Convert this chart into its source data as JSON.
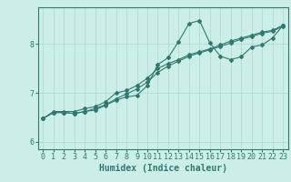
{
  "xlabel": "Humidex (Indice chaleur)",
  "background_color": "#cceee8",
  "line_color": "#2e7b6e",
  "grid_color": "#aad8d0",
  "xlim": [
    -0.5,
    23.5
  ],
  "ylim": [
    5.85,
    8.75
  ],
  "yticks": [
    6,
    7,
    8
  ],
  "xticks": [
    0,
    1,
    2,
    3,
    4,
    5,
    6,
    7,
    8,
    9,
    10,
    11,
    12,
    13,
    14,
    15,
    16,
    17,
    18,
    19,
    20,
    21,
    22,
    23
  ],
  "series1_x": [
    0,
    1,
    2,
    3,
    4,
    5,
    6,
    7,
    8,
    9,
    10,
    11,
    12,
    13,
    14,
    15,
    16,
    17,
    18,
    19,
    20,
    21,
    22,
    23
  ],
  "series1_y": [
    6.48,
    6.62,
    6.62,
    6.62,
    6.68,
    6.72,
    6.82,
    7.0,
    7.05,
    7.15,
    7.3,
    7.5,
    7.6,
    7.68,
    7.78,
    7.84,
    7.9,
    7.98,
    8.06,
    8.12,
    8.18,
    8.24,
    8.28,
    8.38
  ],
  "series2_x": [
    0,
    1,
    2,
    3,
    4,
    5,
    6,
    7,
    8,
    9,
    10,
    11,
    12,
    13,
    14,
    15,
    16,
    17,
    18,
    19,
    20,
    21,
    22,
    23
  ],
  "series2_y": [
    6.48,
    6.6,
    6.6,
    6.58,
    6.62,
    6.68,
    6.76,
    6.88,
    6.98,
    7.08,
    7.22,
    7.42,
    7.55,
    7.65,
    7.75,
    7.82,
    7.88,
    7.95,
    8.02,
    8.1,
    8.15,
    8.22,
    8.26,
    8.36
  ],
  "series3_x": [
    0,
    1,
    2,
    3,
    4,
    5,
    6,
    7,
    8,
    9,
    10,
    11,
    12,
    13,
    14,
    15,
    16,
    17,
    18,
    19,
    20,
    21,
    22,
    23
  ],
  "series3_y": [
    6.48,
    6.6,
    6.6,
    6.58,
    6.62,
    6.65,
    6.75,
    6.85,
    6.92,
    6.95,
    7.15,
    7.58,
    7.72,
    8.05,
    8.42,
    8.48,
    8.02,
    7.75,
    7.68,
    7.74,
    7.94,
    7.98,
    8.12,
    8.38
  ],
  "marker": "D",
  "marker_size": 2.0,
  "line_width": 0.8,
  "tick_fontsize": 6,
  "xlabel_fontsize": 7
}
